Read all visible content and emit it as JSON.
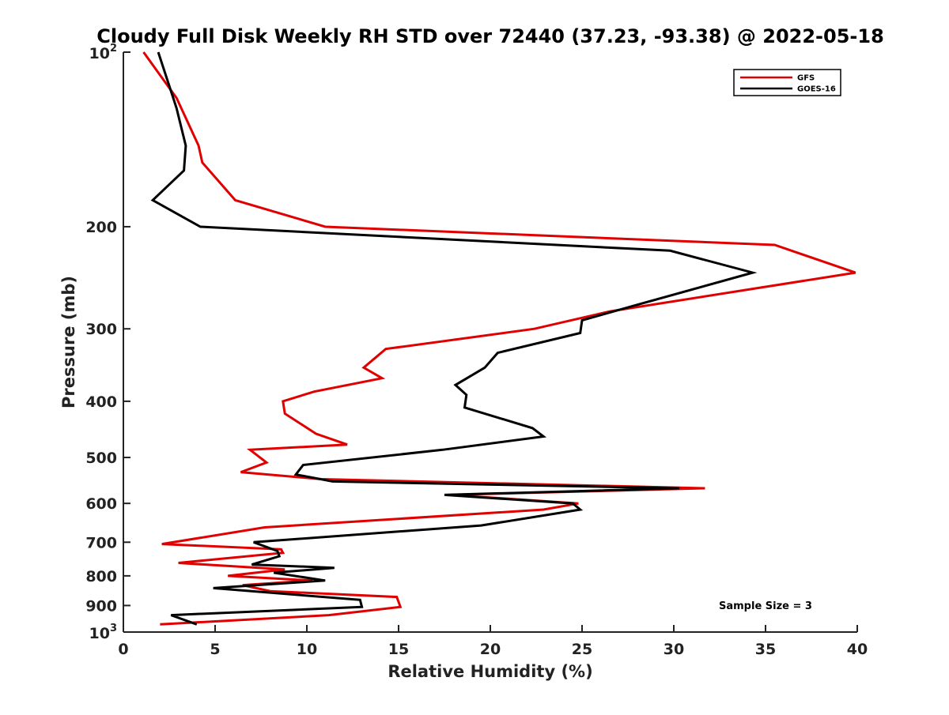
{
  "chart_data": {
    "type": "line",
    "title": "Cloudy Full Disk Weekly RH STD over 72440 (37.23, -93.38) @ 2022-05-18",
    "xlabel": "Relative Humidity (%)",
    "ylabel": "Pressure (mb)",
    "xlim": [
      0,
      40
    ],
    "ylim": [
      100,
      1000
    ],
    "y_scale": "log",
    "y_reversed": true,
    "x_ticks": [
      "0",
      "5",
      "10",
      "15",
      "20",
      "25",
      "30",
      "35",
      "40"
    ],
    "y_ticks": [
      {
        "value": 100,
        "base": "10",
        "exp": "2"
      },
      {
        "value": 200,
        "label": "200"
      },
      {
        "value": 300,
        "label": "300"
      },
      {
        "value": 400,
        "label": "400"
      },
      {
        "value": 500,
        "label": "500"
      },
      {
        "value": 600,
        "label": "600"
      },
      {
        "value": 700,
        "label": "700"
      },
      {
        "value": 800,
        "label": "800"
      },
      {
        "value": 900,
        "label": "900"
      },
      {
        "value": 1000,
        "base": "10",
        "exp": "3"
      }
    ],
    "legend_position": "top-right",
    "grid": false,
    "annotation": "Sample Size = 3",
    "series": [
      {
        "name": "GFS",
        "color": "#e00000",
        "rh": [
          1.1,
          2.9,
          4.1,
          4.3,
          6.1,
          11.0,
          35.5,
          39.9,
          26.5,
          22.4,
          14.3,
          13.1,
          14.1,
          10.4,
          8.7,
          8.8,
          10.5,
          12.2,
          6.9,
          7.8,
          6.4,
          10.8,
          31.7,
          17.8,
          24.8,
          22.9,
          7.7,
          2.1,
          8.6,
          8.7,
          3.0,
          8.8,
          5.7,
          10.3,
          6.5,
          8.0,
          14.9,
          15.1,
          11.2,
          2.0
        ],
        "pressure": [
          100,
          120,
          145,
          155,
          180,
          200,
          215,
          240,
          280,
          300,
          325,
          350,
          365,
          385,
          400,
          420,
          455,
          475,
          485,
          510,
          530,
          545,
          565,
          580,
          600,
          615,
          660,
          705,
          720,
          730,
          760,
          780,
          800,
          815,
          830,
          850,
          870,
          905,
          935,
          970
        ]
      },
      {
        "name": "GOES-16",
        "color": "#000000",
        "rh": [
          1.9,
          2.9,
          3.4,
          3.3,
          1.6,
          4.2,
          29.8,
          34.3,
          28.5,
          25.0,
          24.9,
          20.4,
          19.7,
          18.1,
          18.7,
          18.6,
          22.3,
          22.9,
          17.4,
          9.8,
          9.4,
          11.4,
          30.3,
          17.5,
          24.5,
          24.9,
          19.5,
          7.1,
          8.4,
          8.5,
          7.0,
          11.5,
          8.2,
          11.0,
          4.9,
          12.9,
          13.0,
          2.6,
          4.0
        ],
        "pressure": [
          100,
          125,
          145,
          160,
          180,
          200,
          220,
          240,
          270,
          290,
          305,
          330,
          350,
          375,
          390,
          410,
          445,
          460,
          485,
          515,
          535,
          550,
          565,
          580,
          600,
          615,
          655,
          700,
          725,
          740,
          765,
          775,
          790,
          815,
          840,
          880,
          905,
          935,
          970
        ]
      }
    ]
  }
}
